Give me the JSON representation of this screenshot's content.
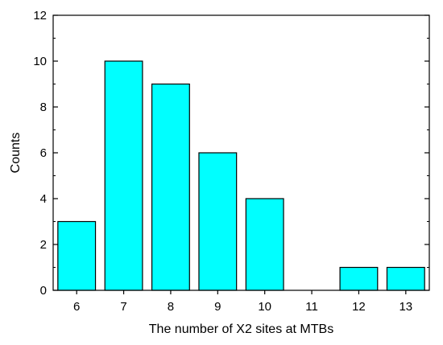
{
  "chart_data": {
    "type": "bar",
    "title": "",
    "xlabel": "The number of X2 sites at MTBs",
    "ylabel": "Counts",
    "categories": [
      "6",
      "7",
      "8",
      "9",
      "10",
      "11",
      "12",
      "13"
    ],
    "values": [
      3,
      10,
      9,
      6,
      4,
      0,
      1,
      1
    ],
    "ylim": [
      0,
      12
    ],
    "yticks": [
      "0",
      "2",
      "4",
      "6",
      "8",
      "10",
      "12"
    ],
    "bar_color": "#00ffff",
    "grid": false
  }
}
